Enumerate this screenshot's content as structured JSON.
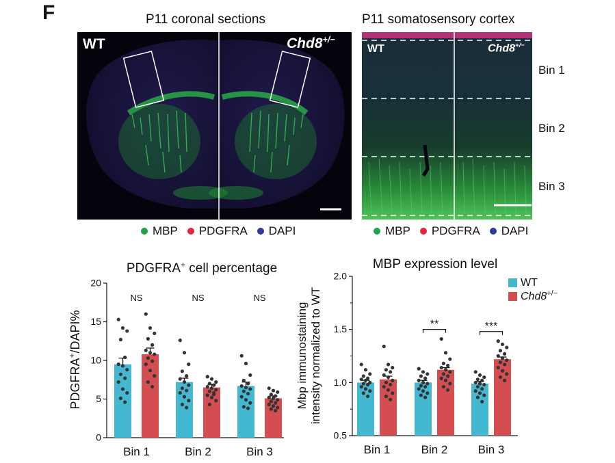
{
  "panel_letter": "F",
  "top_left": {
    "title": "P11 coronal sections",
    "label_left": "WT",
    "label_right_base": "Chd8",
    "label_right_sup": "+/−"
  },
  "top_right": {
    "title": "P11 somatosensory cortex",
    "label_left": "WT",
    "label_right_base": "Chd8",
    "label_right_sup": "+/−",
    "bins": [
      "Bin 1",
      "Bin 2",
      "Bin 3"
    ]
  },
  "stain_legend": [
    {
      "label": "MBP",
      "color": "#1aa54a"
    },
    {
      "label": "PDGFRA",
      "color": "#e3263b"
    },
    {
      "label": "DAPI",
      "color": "#2b3a9c"
    }
  ],
  "colors": {
    "wt": "#45b8d1",
    "chd8": "#d44e51",
    "points": "#333333"
  },
  "chart_data": [
    {
      "type": "bar",
      "title": "PDGFRA",
      "title_sup": "+",
      "title_rest": " cell percentage",
      "ylabel": "PDGFRA",
      "ylabel_sup": "+",
      "ylabel_rest": "/DAPI%",
      "categories": [
        "Bin 1",
        "Bin 2",
        "Bin 3"
      ],
      "ylim": [
        0,
        20
      ],
      "yticks": [
        "0",
        "5",
        "10",
        "15",
        "20"
      ],
      "series": [
        {
          "values": [
            9.5,
            7.2,
            6.7
          ],
          "sem": [
            0.8,
            0.5,
            0.5
          ],
          "points": [
            [
              15.3,
              14.2,
              13.8,
              12.7,
              10.4,
              9.5,
              9.3,
              8.8,
              8.2,
              7.7,
              7.2,
              6.3,
              5.8,
              5.1,
              4.6
            ],
            [
              12.6,
              11.0,
              9.5,
              8.6,
              8.0,
              7.6,
              7.2,
              6.8,
              6.4,
              6.1,
              5.8,
              5.3,
              4.8,
              4.3,
              3.9
            ],
            [
              10.6,
              9.6,
              8.1,
              7.4,
              7.0,
              6.7,
              6.5,
              6.3,
              6.0,
              5.7,
              5.3,
              4.9,
              4.5,
              4.0,
              3.8
            ]
          ]
        },
        {
          "values": [
            10.8,
            6.5,
            5.1
          ],
          "sem": [
            0.8,
            0.4,
            0.3
          ],
          "points": [
            [
              16.0,
              14.2,
              13.5,
              12.8,
              12.0,
              11.3,
              11.0,
              10.8,
              10.3,
              9.9,
              9.5,
              8.7,
              8.0,
              7.2,
              6.6
            ],
            [
              7.9,
              7.6,
              7.2,
              7.0,
              6.8,
              6.6,
              6.4,
              6.2,
              6.0,
              5.8,
              5.5,
              5.2,
              4.8,
              4.3,
              5.6
            ],
            [
              6.4,
              6.1,
              5.9,
              5.6,
              5.4,
              5.2,
              5.1,
              4.9,
              4.7,
              4.5,
              4.3,
              4.1,
              3.9,
              3.7,
              3.5
            ]
          ]
        }
      ],
      "annotations": [
        "NS",
        "NS",
        "NS"
      ]
    },
    {
      "type": "bar",
      "title": "MBP expression level",
      "ylabel_line1": "Mbp immunostaining",
      "ylabel_line2": "intensity normalized to WT",
      "categories": [
        "Bin 1",
        "Bin 2",
        "Bin 3"
      ],
      "ylim": [
        0.5,
        2.0
      ],
      "yticks": [
        "0.5",
        "1.0",
        "1.5",
        "2.0"
      ],
      "series": [
        {
          "name": "WT",
          "name_base": "WT",
          "name_sup": "",
          "values": [
            1.0,
            1.0,
            0.99
          ],
          "sem": [
            0.02,
            0.02,
            0.02
          ],
          "points": [
            [
              1.17,
              1.12,
              1.08,
              1.06,
              1.04,
              1.03,
              1.02,
              1.0,
              0.99,
              0.98,
              0.96,
              0.94,
              0.92,
              0.9,
              0.87
            ],
            [
              1.13,
              1.1,
              1.08,
              1.06,
              1.04,
              1.02,
              1.0,
              0.99,
              0.97,
              0.96,
              0.94,
              0.92,
              0.9,
              0.88,
              0.86
            ],
            [
              1.1,
              1.07,
              1.05,
              1.03,
              1.02,
              1.0,
              0.99,
              0.98,
              0.96,
              0.94,
              0.92,
              0.9,
              0.88,
              0.86,
              0.82
            ]
          ]
        },
        {
          "name": "Chd8+/−",
          "name_base": "Chd8",
          "name_sup": "+/−",
          "values": [
            1.03,
            1.12,
            1.22
          ],
          "sem": [
            0.03,
            0.02,
            0.02
          ],
          "points": [
            [
              1.34,
              1.17,
              1.14,
              1.12,
              1.1,
              1.07,
              1.05,
              1.02,
              1.0,
              0.98,
              0.96,
              0.93,
              0.9,
              0.87,
              0.84
            ],
            [
              1.41,
              1.28,
              1.22,
              1.18,
              1.16,
              1.14,
              1.12,
              1.1,
              1.08,
              1.06,
              1.04,
              1.02,
              0.99,
              0.96,
              0.93
            ],
            [
              1.39,
              1.36,
              1.33,
              1.3,
              1.27,
              1.25,
              1.23,
              1.21,
              1.19,
              1.17,
              1.14,
              1.11,
              1.08,
              1.05,
              1.02
            ]
          ]
        }
      ],
      "annotations": [
        "",
        "**",
        "***"
      ]
    }
  ]
}
